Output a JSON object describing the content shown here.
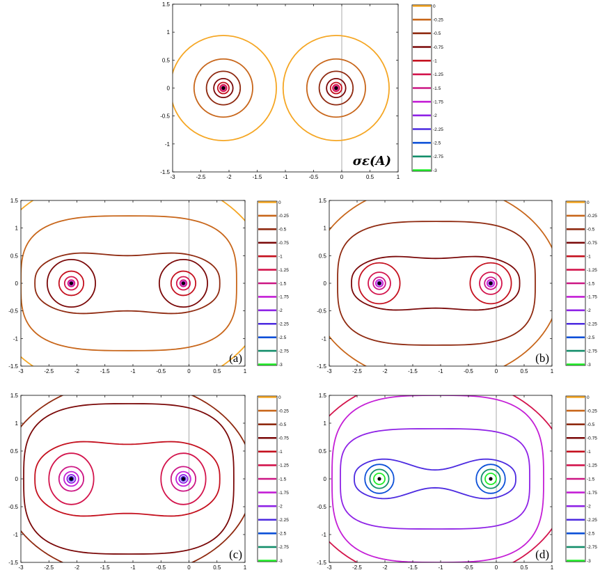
{
  "figure": {
    "levels": [
      "0",
      "-0.25",
      "-0.5",
      "-0.75",
      "-1",
      "-1.25",
      "-1.5",
      "-1.75",
      "-2",
      "-2.25",
      "-2.5",
      "-2.75",
      "-3"
    ],
    "level_colors": [
      "#f5a623",
      "#c8661a",
      "#8f2a10",
      "#7a0808",
      "#c4101e",
      "#d3144c",
      "#cc1684",
      "#c41ed6",
      "#8e22e6",
      "#4c2ae0",
      "#0c50d8",
      "#138e6a",
      "#20ee28"
    ],
    "x_ticks": [
      "-3",
      "-2.5",
      "-2",
      "-1.5",
      "-1",
      "-0.5",
      "0",
      "0.5",
      "1"
    ],
    "y_ticks": [
      "1.5",
      "1",
      "0.5",
      "0",
      "-0.5",
      "-1",
      "-1.5"
    ]
  },
  "chart_data": [
    {
      "type": "contour",
      "panel": "top",
      "title": "σε(A)",
      "label": "",
      "xlim": [
        -3,
        1
      ],
      "ylim": [
        -1.5,
        1.5
      ],
      "eigenvalues": [
        [
          -2.1,
          0
        ],
        [
          -0.1,
          0
        ]
      ],
      "contours": [
        {
          "level": "0",
          "shape": "two-circles",
          "radius": 0.94
        },
        {
          "level": "-0.25",
          "shape": "two-circles",
          "radius": 0.52
        },
        {
          "level": "-0.5",
          "shape": "two-circles",
          "radius": 0.3
        },
        {
          "level": "-0.75",
          "shape": "two-circles",
          "radius": 0.17
        },
        {
          "level": "-1",
          "shape": "two-circles",
          "radius": 0.1
        },
        {
          "level": "-1.25",
          "shape": "two-circles",
          "radius": 0.06
        },
        {
          "level": "-1.5",
          "shape": "two-circles",
          "radius": 0.035
        }
      ]
    },
    {
      "type": "contour",
      "panel": "a",
      "title": "",
      "label": "(a)",
      "xlim": [
        -3,
        1
      ],
      "ylim": [
        -1.5,
        1.5
      ],
      "eigenvalues": [
        [
          -2.1,
          0
        ],
        [
          -0.1,
          0
        ]
      ],
      "contours": [
        {
          "level": "0",
          "shape": "large-ellipse",
          "rx": 2.55,
          "ry": 2.0
        },
        {
          "level": "-0.25",
          "shape": "stadium",
          "x": [
            -3.0,
            0.85
          ],
          "y": [
            -1.22,
            1.22
          ]
        },
        {
          "level": "-0.5",
          "shape": "peanut",
          "x": [
            -2.75,
            0.55
          ],
          "y_max": 0.66,
          "neck": 0.5
        },
        {
          "level": "-0.75",
          "shape": "two-circles",
          "radius": 0.43
        },
        {
          "level": "-1",
          "shape": "two-circles",
          "radius": 0.22
        },
        {
          "level": "-1.25",
          "shape": "two-circles",
          "radius": 0.12
        },
        {
          "level": "-1.5",
          "shape": "two-circles",
          "radius": 0.06
        },
        {
          "level": "-1.75",
          "shape": "two-circles",
          "radius": 0.035
        }
      ]
    },
    {
      "type": "contour",
      "panel": "b",
      "title": "",
      "label": "(b)",
      "xlim": [
        -3,
        1
      ],
      "ylim": [
        -1.5,
        1.5
      ],
      "eigenvalues": [
        [
          -2.1,
          0
        ],
        [
          -0.1,
          0
        ]
      ],
      "contours": [
        {
          "level": "-0.25",
          "shape": "large-ellipse",
          "rx": 2.25,
          "ry": 1.8
        },
        {
          "level": "-0.5",
          "shape": "stadium",
          "x": [
            -2.85,
            0.7
          ],
          "y": [
            -1.12,
            1.12
          ]
        },
        {
          "level": "-0.75",
          "shape": "peanut",
          "x": [
            -2.6,
            0.42
          ],
          "y_max": 0.58,
          "neck": 0.45
        },
        {
          "level": "-1",
          "shape": "two-circles",
          "radius": 0.37
        },
        {
          "level": "-1.25",
          "shape": "two-circles",
          "radius": 0.2
        },
        {
          "level": "-1.5",
          "shape": "two-circles",
          "radius": 0.11
        },
        {
          "level": "-1.75",
          "shape": "two-circles",
          "radius": 0.065
        },
        {
          "level": "-2",
          "shape": "two-circles",
          "radius": 0.035
        }
      ]
    },
    {
      "type": "contour",
      "panel": "c",
      "title": "",
      "label": "(c)",
      "xlim": [
        -3,
        1
      ],
      "ylim": [
        -1.5,
        1.5
      ],
      "eigenvalues": [
        [
          -2.1,
          0
        ],
        [
          -0.1,
          0
        ]
      ],
      "contours": [
        {
          "level": "-0.5",
          "shape": "large-ellipse",
          "rx": 2.25,
          "ry": 1.75
        },
        {
          "level": "-0.75",
          "shape": "stadium",
          "x": [
            -2.95,
            0.8
          ],
          "y": [
            -1.35,
            1.35
          ]
        },
        {
          "level": "-1",
          "shape": "peanut",
          "x": [
            -2.75,
            0.55
          ],
          "y_max": 0.8,
          "neck": 0.62
        },
        {
          "level": "-1.25",
          "shape": "two-ovals",
          "radius": 0.4
        },
        {
          "level": "-1.5",
          "shape": "two-circles",
          "radius": 0.22
        },
        {
          "level": "-1.75",
          "shape": "two-circles",
          "radius": 0.13
        },
        {
          "level": "-2",
          "shape": "two-circles",
          "radius": 0.075
        },
        {
          "level": "-2.25",
          "shape": "two-circles",
          "radius": 0.04
        }
      ]
    },
    {
      "type": "contour",
      "panel": "d",
      "title": "",
      "label": "(d)",
      "xlim": [
        -3,
        1
      ],
      "ylim": [
        -1.5,
        1.5
      ],
      "eigenvalues": [
        [
          -2.1,
          0
        ],
        [
          -0.1,
          0
        ]
      ],
      "contours": [
        {
          "level": "-1.25",
          "shape": "large-ellipse",
          "rx": 2.4,
          "ry": 1.85
        },
        {
          "level": "-1.75",
          "shape": "stadium",
          "x": [
            -2.95,
            0.85
          ],
          "y": [
            -1.5,
            1.5
          ]
        },
        {
          "level": "-2",
          "shape": "rounded-rect",
          "x": [
            -2.8,
            0.6
          ],
          "y": [
            -0.9,
            0.9
          ]
        },
        {
          "level": "-2.25",
          "shape": "peanut",
          "x": [
            -2.55,
            0.35
          ],
          "y_max": 0.47,
          "neck": 0.16
        },
        {
          "level": "-2.5",
          "shape": "two-circles",
          "radius": 0.26
        },
        {
          "level": "-2.75",
          "shape": "two-circles",
          "radius": 0.17
        },
        {
          "level": "-3",
          "shape": "two-circles",
          "radius": 0.1
        }
      ]
    }
  ]
}
